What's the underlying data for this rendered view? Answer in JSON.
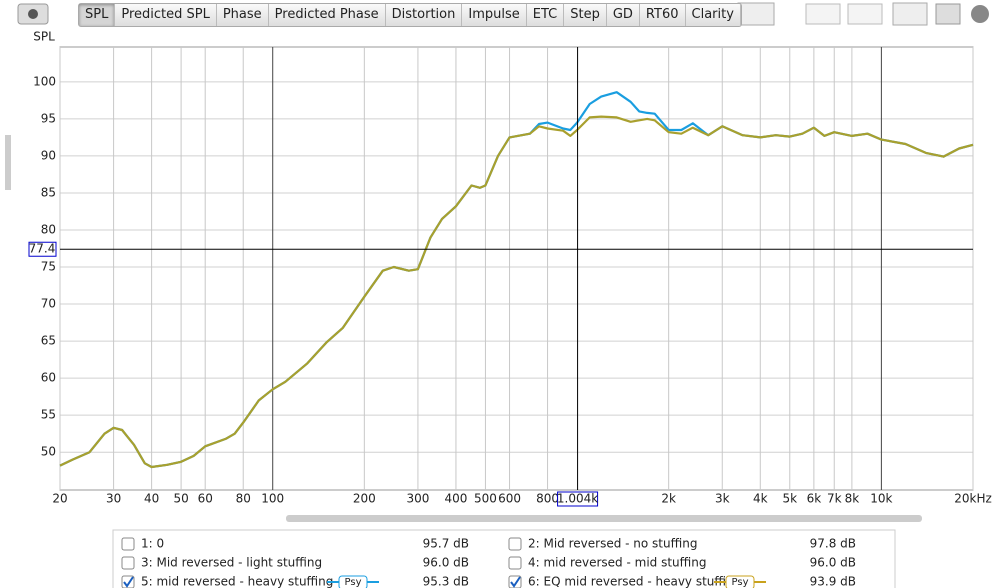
{
  "toolbar": {
    "tabs": [
      "SPL",
      "Predicted SPL",
      "Phase",
      "Predicted Phase",
      "Distortion",
      "Impulse",
      "ETC",
      "Step",
      "GD",
      "RT60",
      "Clarity"
    ],
    "active": 0
  },
  "chart_data": {
    "type": "line",
    "y_label": "SPL",
    "log_x": true,
    "grid": true,
    "xlim": [
      20,
      20000
    ],
    "ylim": [
      44.9,
      104.7
    ],
    "xticks": [
      20,
      30,
      40,
      50,
      60,
      80,
      100,
      200,
      300,
      400,
      500,
      600,
      800,
      {
        "value": 2000,
        "label": "2k"
      },
      {
        "value": 3000,
        "label": "3k"
      },
      {
        "value": 4000,
        "label": "4k"
      },
      {
        "value": 5000,
        "label": "5k"
      },
      {
        "value": 6000,
        "label": "6k"
      },
      {
        "value": 7000,
        "label": "7k"
      },
      {
        "value": 8000,
        "label": "8k"
      },
      {
        "value": 10000,
        "label": "10k"
      },
      {
        "value": 20000,
        "label": "20kHz"
      }
    ],
    "yticks": [
      50,
      55,
      60,
      65,
      70,
      75,
      80,
      85,
      90,
      95,
      100
    ],
    "cursor": {
      "x": {
        "value": 1004,
        "label": "1.004k"
      },
      "y": 77.4
    },
    "x": [
      20,
      22,
      25,
      28,
      30,
      32,
      35,
      38,
      40,
      45,
      50,
      55,
      60,
      70,
      75,
      80,
      90,
      100,
      110,
      130,
      150,
      170,
      200,
      230,
      250,
      280,
      300,
      330,
      360,
      400,
      450,
      480,
      500,
      550,
      600,
      700,
      750,
      800,
      900,
      950,
      1000,
      1100,
      1200,
      1350,
      1500,
      1600,
      1700,
      1800,
      2000,
      2200,
      2400,
      2700,
      3000,
      3500,
      4000,
      4500,
      5000,
      5500,
      6000,
      6500,
      7000,
      8000,
      9000,
      10000,
      12000,
      14000,
      16000,
      18000,
      20000
    ],
    "series": [
      {
        "name": "5: mid reversed - heavy stuffing",
        "color": "#1a9ee0",
        "values": [
          48.2,
          49,
          50,
          52.5,
          53.3,
          53,
          51,
          48.5,
          48,
          48.3,
          48.7,
          49.5,
          50.8,
          51.8,
          52.5,
          54,
          57,
          58.5,
          59.5,
          62,
          64.8,
          66.8,
          71,
          74.5,
          75,
          74.5,
          74.7,
          79,
          81.5,
          83.2,
          86,
          85.7,
          86,
          90,
          92.5,
          93,
          94.3,
          94.5,
          93.7,
          93.5,
          94.5,
          97,
          98,
          98.6,
          97.3,
          96,
          95.8,
          95.7,
          93.5,
          93.5,
          94.4,
          92.8,
          94,
          92.8,
          92.5,
          92.8,
          92.6,
          93,
          93.8,
          92.7,
          93.2,
          92.7,
          93,
          92.2,
          91.6,
          90.4,
          89.9,
          91,
          91.5
        ]
      },
      {
        "name": "6: EQ mid reversed - heavy stuffin",
        "color": "#a9a02e",
        "values": [
          48.2,
          49,
          50,
          52.5,
          53.3,
          53,
          51,
          48.5,
          48,
          48.3,
          48.7,
          49.5,
          50.8,
          51.8,
          52.5,
          54,
          57,
          58.5,
          59.5,
          62,
          64.8,
          66.8,
          71,
          74.5,
          75,
          74.5,
          74.7,
          79,
          81.5,
          83.2,
          86,
          85.7,
          86,
          90,
          92.5,
          93,
          94,
          93.7,
          93.4,
          92.7,
          93.5,
          95.2,
          95.3,
          95.2,
          94.6,
          94.8,
          95,
          94.8,
          93.2,
          93,
          93.8,
          92.8,
          94,
          92.8,
          92.5,
          92.8,
          92.6,
          93,
          93.8,
          92.7,
          93.2,
          92.7,
          93,
          92.2,
          91.6,
          90.4,
          89.9,
          91,
          91.5
        ]
      }
    ]
  },
  "legend": [
    {
      "label": "1: 0",
      "value": "95.7 dB",
      "color": "#e3103c",
      "checked": false
    },
    {
      "label": "2: Mid reversed - no stuffing",
      "value": "97.8 dB",
      "color": "#1d7283",
      "checked": false
    },
    {
      "label": "3: Mid reversed - light stuffing",
      "value": "96.0 dB",
      "color": "#20ad5a",
      "checked": false
    },
    {
      "label": "4: mid reversed - mid stuffing",
      "value": "96.0 dB",
      "color": "#8fd35c",
      "checked": false
    },
    {
      "label": "5: mid reversed - heavy stuffing",
      "value": "95.3 dB",
      "color": "#1a9ee0",
      "checked": true,
      "smoothing": "Psy"
    },
    {
      "label": "6: EQ mid reversed - heavy stuffin",
      "value": "93.9 dB",
      "color": "#c9a21c",
      "checked": true,
      "smoothing": "Psy"
    }
  ]
}
